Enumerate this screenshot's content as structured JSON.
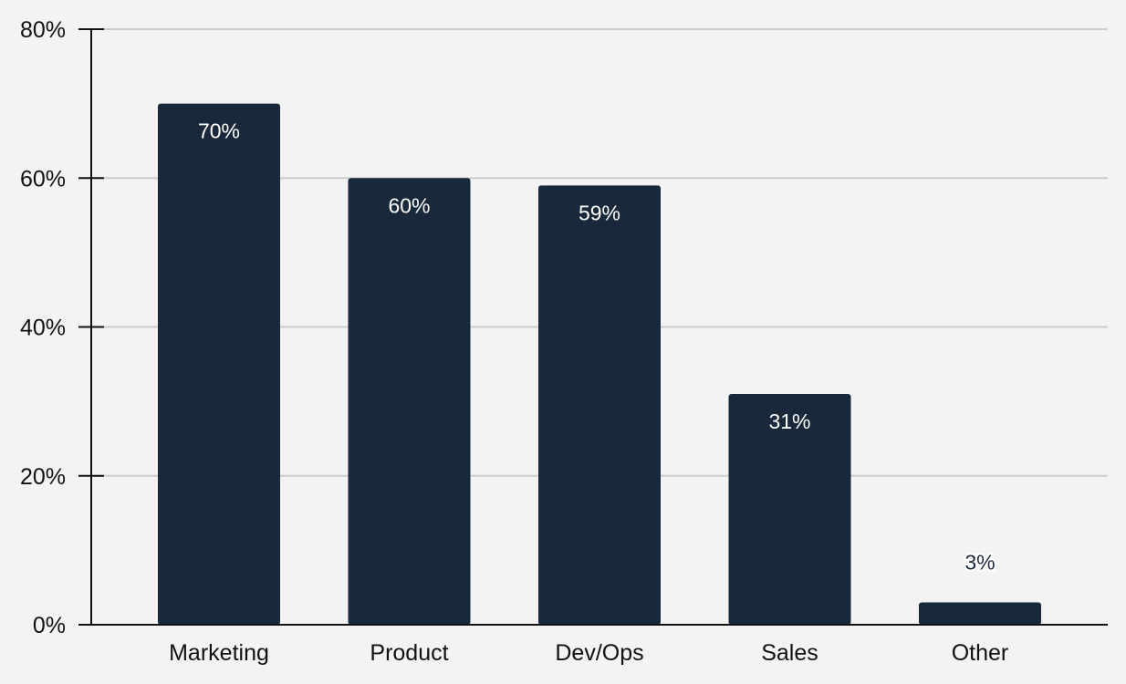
{
  "chart_data": {
    "type": "bar",
    "title": "",
    "xlabel": "",
    "ylabel": "",
    "categories": [
      "Marketing",
      "Product",
      "Dev/Ops",
      "Sales",
      "Other"
    ],
    "values": [
      70,
      60,
      59,
      31,
      3
    ],
    "value_labels": [
      "70%",
      "60%",
      "59%",
      "31%",
      "3%"
    ],
    "ylim": [
      0,
      80
    ],
    "yticks": [
      0,
      20,
      40,
      60,
      80
    ],
    "ytick_labels": [
      "0%",
      "20%",
      "40%",
      "60%",
      "80%"
    ],
    "grid": true,
    "legend": "none",
    "colors": {
      "bar": "#19283b",
      "label_inside": "#ffffff",
      "label_outside": "#19283b",
      "grid": "#cccccc",
      "axis": "#111111",
      "background": "#f3f3f3"
    }
  }
}
